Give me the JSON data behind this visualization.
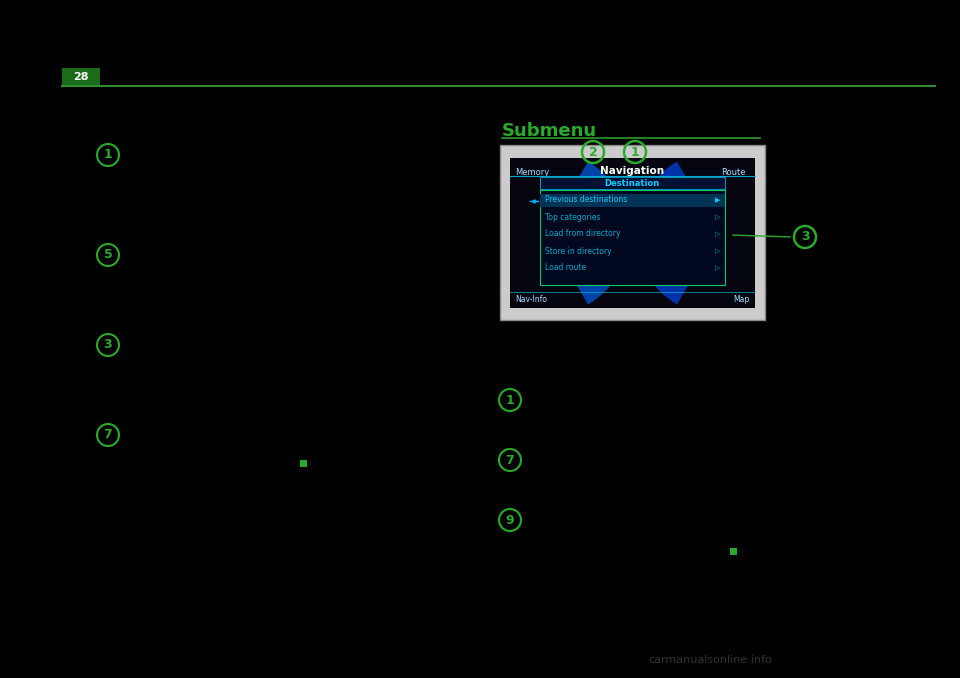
{
  "bg_color": "#000000",
  "page_bg": "#000000",
  "page_number": "28",
  "page_num_bg": "#1a6b1a",
  "page_num_color": "#ffffff",
  "header_line_color": "#2d8c2d",
  "green_color": "#1a7a1a",
  "bright_green": "#2aaa2a",
  "title_submenu": "Submenu",
  "title_line_color": "#2d9c2d",
  "numbered_circles_color": "#2a8a2a",
  "left_bullet_numbers": [
    "1",
    "5",
    "3",
    "7"
  ],
  "right_bullet_numbers": [
    "1",
    "7",
    "9"
  ],
  "screen_bg": "#cccccc",
  "nav_bg": "#0a0a1a",
  "nav_title_text": "Navigation",
  "nav_memory_text": "Memory",
  "nav_route_text": "Route",
  "nav_destination_text": "Destination",
  "nav_menu_items": [
    "Previous destinations",
    "Top categories",
    "Load from directory",
    "Store in directory",
    "Load route"
  ],
  "nav_bottom_left": "Nav-Info",
  "nav_bottom_right": "Map",
  "label_1": "1",
  "label_2": "2",
  "label_3": "3",
  "watermark": "carmanualsonline.info"
}
